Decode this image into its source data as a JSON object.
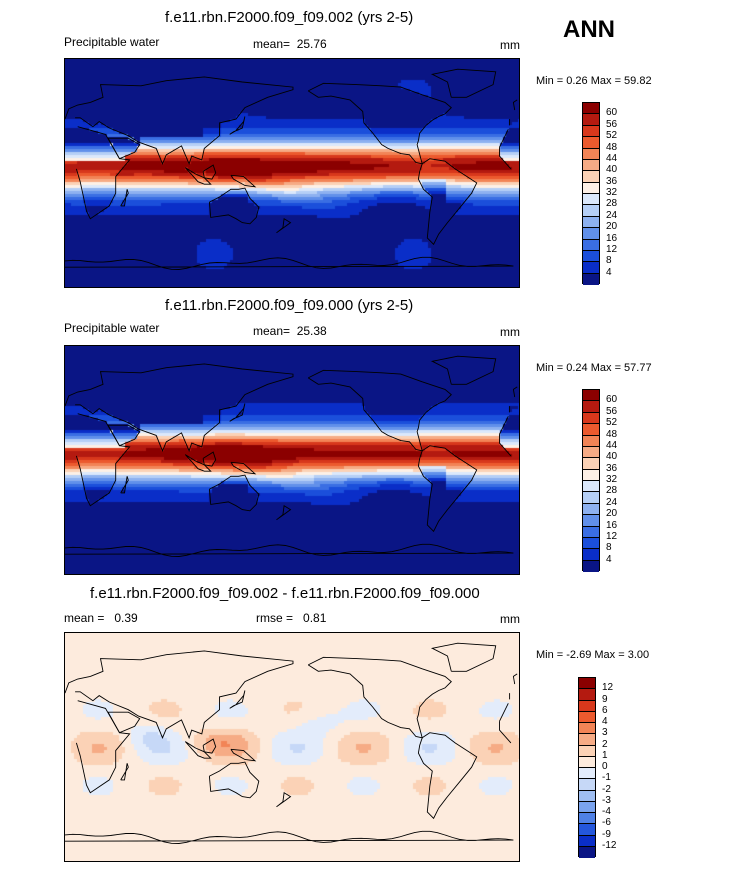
{
  "season": "ANN",
  "panels": [
    {
      "title": "f.e11.rbn.F2000.f09_f09.002 (yrs 2-5)",
      "variable": "Precipitable water",
      "stat_label": "mean=",
      "stat_value": "25.76",
      "units": "mm",
      "minmax": "Min =   0.26 Max =  59.82",
      "field_type": "pw",
      "colorbar": {
        "labels": [
          "60",
          "56",
          "52",
          "48",
          "44",
          "40",
          "36",
          "32",
          "28",
          "24",
          "20",
          "16",
          "12",
          "8",
          "4"
        ],
        "colors": [
          "#8b0000",
          "#b41a10",
          "#d8381c",
          "#ec5a2e",
          "#f28456",
          "#f6ab85",
          "#fbd2b6",
          "#fdf0e6",
          "#dbe8fb",
          "#b5cff6",
          "#8db1f0",
          "#6190ea",
          "#3a6ee3",
          "#1b4fdb",
          "#0a2ec8",
          "#0a1585"
        ]
      }
    },
    {
      "title": "f.e11.rbn.F2000.f09_f09.000 (yrs 2-5)",
      "variable": "Precipitable water",
      "stat_label": "mean=",
      "stat_value": "25.38",
      "units": "mm",
      "minmax": "Min =   0.24 Max =  57.77",
      "field_type": "pw",
      "colorbar": {
        "labels": [
          "60",
          "56",
          "52",
          "48",
          "44",
          "40",
          "36",
          "32",
          "28",
          "24",
          "20",
          "16",
          "12",
          "8",
          "4"
        ],
        "colors": [
          "#8b0000",
          "#b41a10",
          "#d8381c",
          "#ec5a2e",
          "#f28456",
          "#f6ab85",
          "#fbd2b6",
          "#fdf0e6",
          "#dbe8fb",
          "#b5cff6",
          "#8db1f0",
          "#6190ea",
          "#3a6ee3",
          "#1b4fdb",
          "#0a2ec8",
          "#0a1585"
        ]
      }
    },
    {
      "title": "f.e11.rbn.F2000.f09_f09.002 - f.e11.rbn.F2000.f09_f09.000",
      "variable": "",
      "stat_label": "mean =",
      "stat_value": "0.39",
      "stat2_label": "rmse =",
      "stat2_value": "0.81",
      "units": "mm",
      "minmax": "Min =  -2.69 Max =   3.00",
      "field_type": "diff",
      "colorbar": {
        "labels": [
          "12",
          "9",
          "6",
          "4",
          "3",
          "2",
          "1",
          "0",
          "-1",
          "-2",
          "-3",
          "-4",
          "-6",
          "-9",
          "-12"
        ],
        "colors": [
          "#8b0000",
          "#b41a10",
          "#d8381c",
          "#ec5a2e",
          "#f28456",
          "#f6ab85",
          "#fbd2b6",
          "#fdebdd",
          "#e3ecfb",
          "#c6d8f7",
          "#9fbef2",
          "#7aa3ee",
          "#4f81e6",
          "#2457dc",
          "#0a2ec8",
          "#0a1585"
        ]
      }
    }
  ],
  "chart_data": [
    {
      "type": "heatmap",
      "title": "f.e11.rbn.F2000.f09_f09.002 (yrs 2-5)",
      "variable": "Precipitable water",
      "units": "mm",
      "mean": 25.76,
      "min": 0.26,
      "max": 59.82,
      "colorbar_levels": [
        4,
        8,
        12,
        16,
        20,
        24,
        28,
        32,
        36,
        40,
        44,
        48,
        52,
        56,
        60
      ],
      "projection": "cylindrical equidistant, centered 180°"
    },
    {
      "type": "heatmap",
      "title": "f.e11.rbn.F2000.f09_f09.000 (yrs 2-5)",
      "variable": "Precipitable water",
      "units": "mm",
      "mean": 25.38,
      "min": 0.24,
      "max": 57.77,
      "colorbar_levels": [
        4,
        8,
        12,
        16,
        20,
        24,
        28,
        32,
        36,
        40,
        44,
        48,
        52,
        56,
        60
      ],
      "projection": "cylindrical equidistant, centered 180°"
    },
    {
      "type": "heatmap",
      "title": "f.e11.rbn.F2000.f09_f09.002 - f.e11.rbn.F2000.f09_f09.000",
      "units": "mm",
      "mean": 0.39,
      "rmse": 0.81,
      "min": -2.69,
      "max": 3.0,
      "colorbar_levels": [
        -12,
        -9,
        -6,
        -4,
        -3,
        -2,
        -1,
        0,
        1,
        2,
        3,
        4,
        6,
        9,
        12
      ],
      "projection": "cylindrical equidistant, centered 180°"
    }
  ]
}
